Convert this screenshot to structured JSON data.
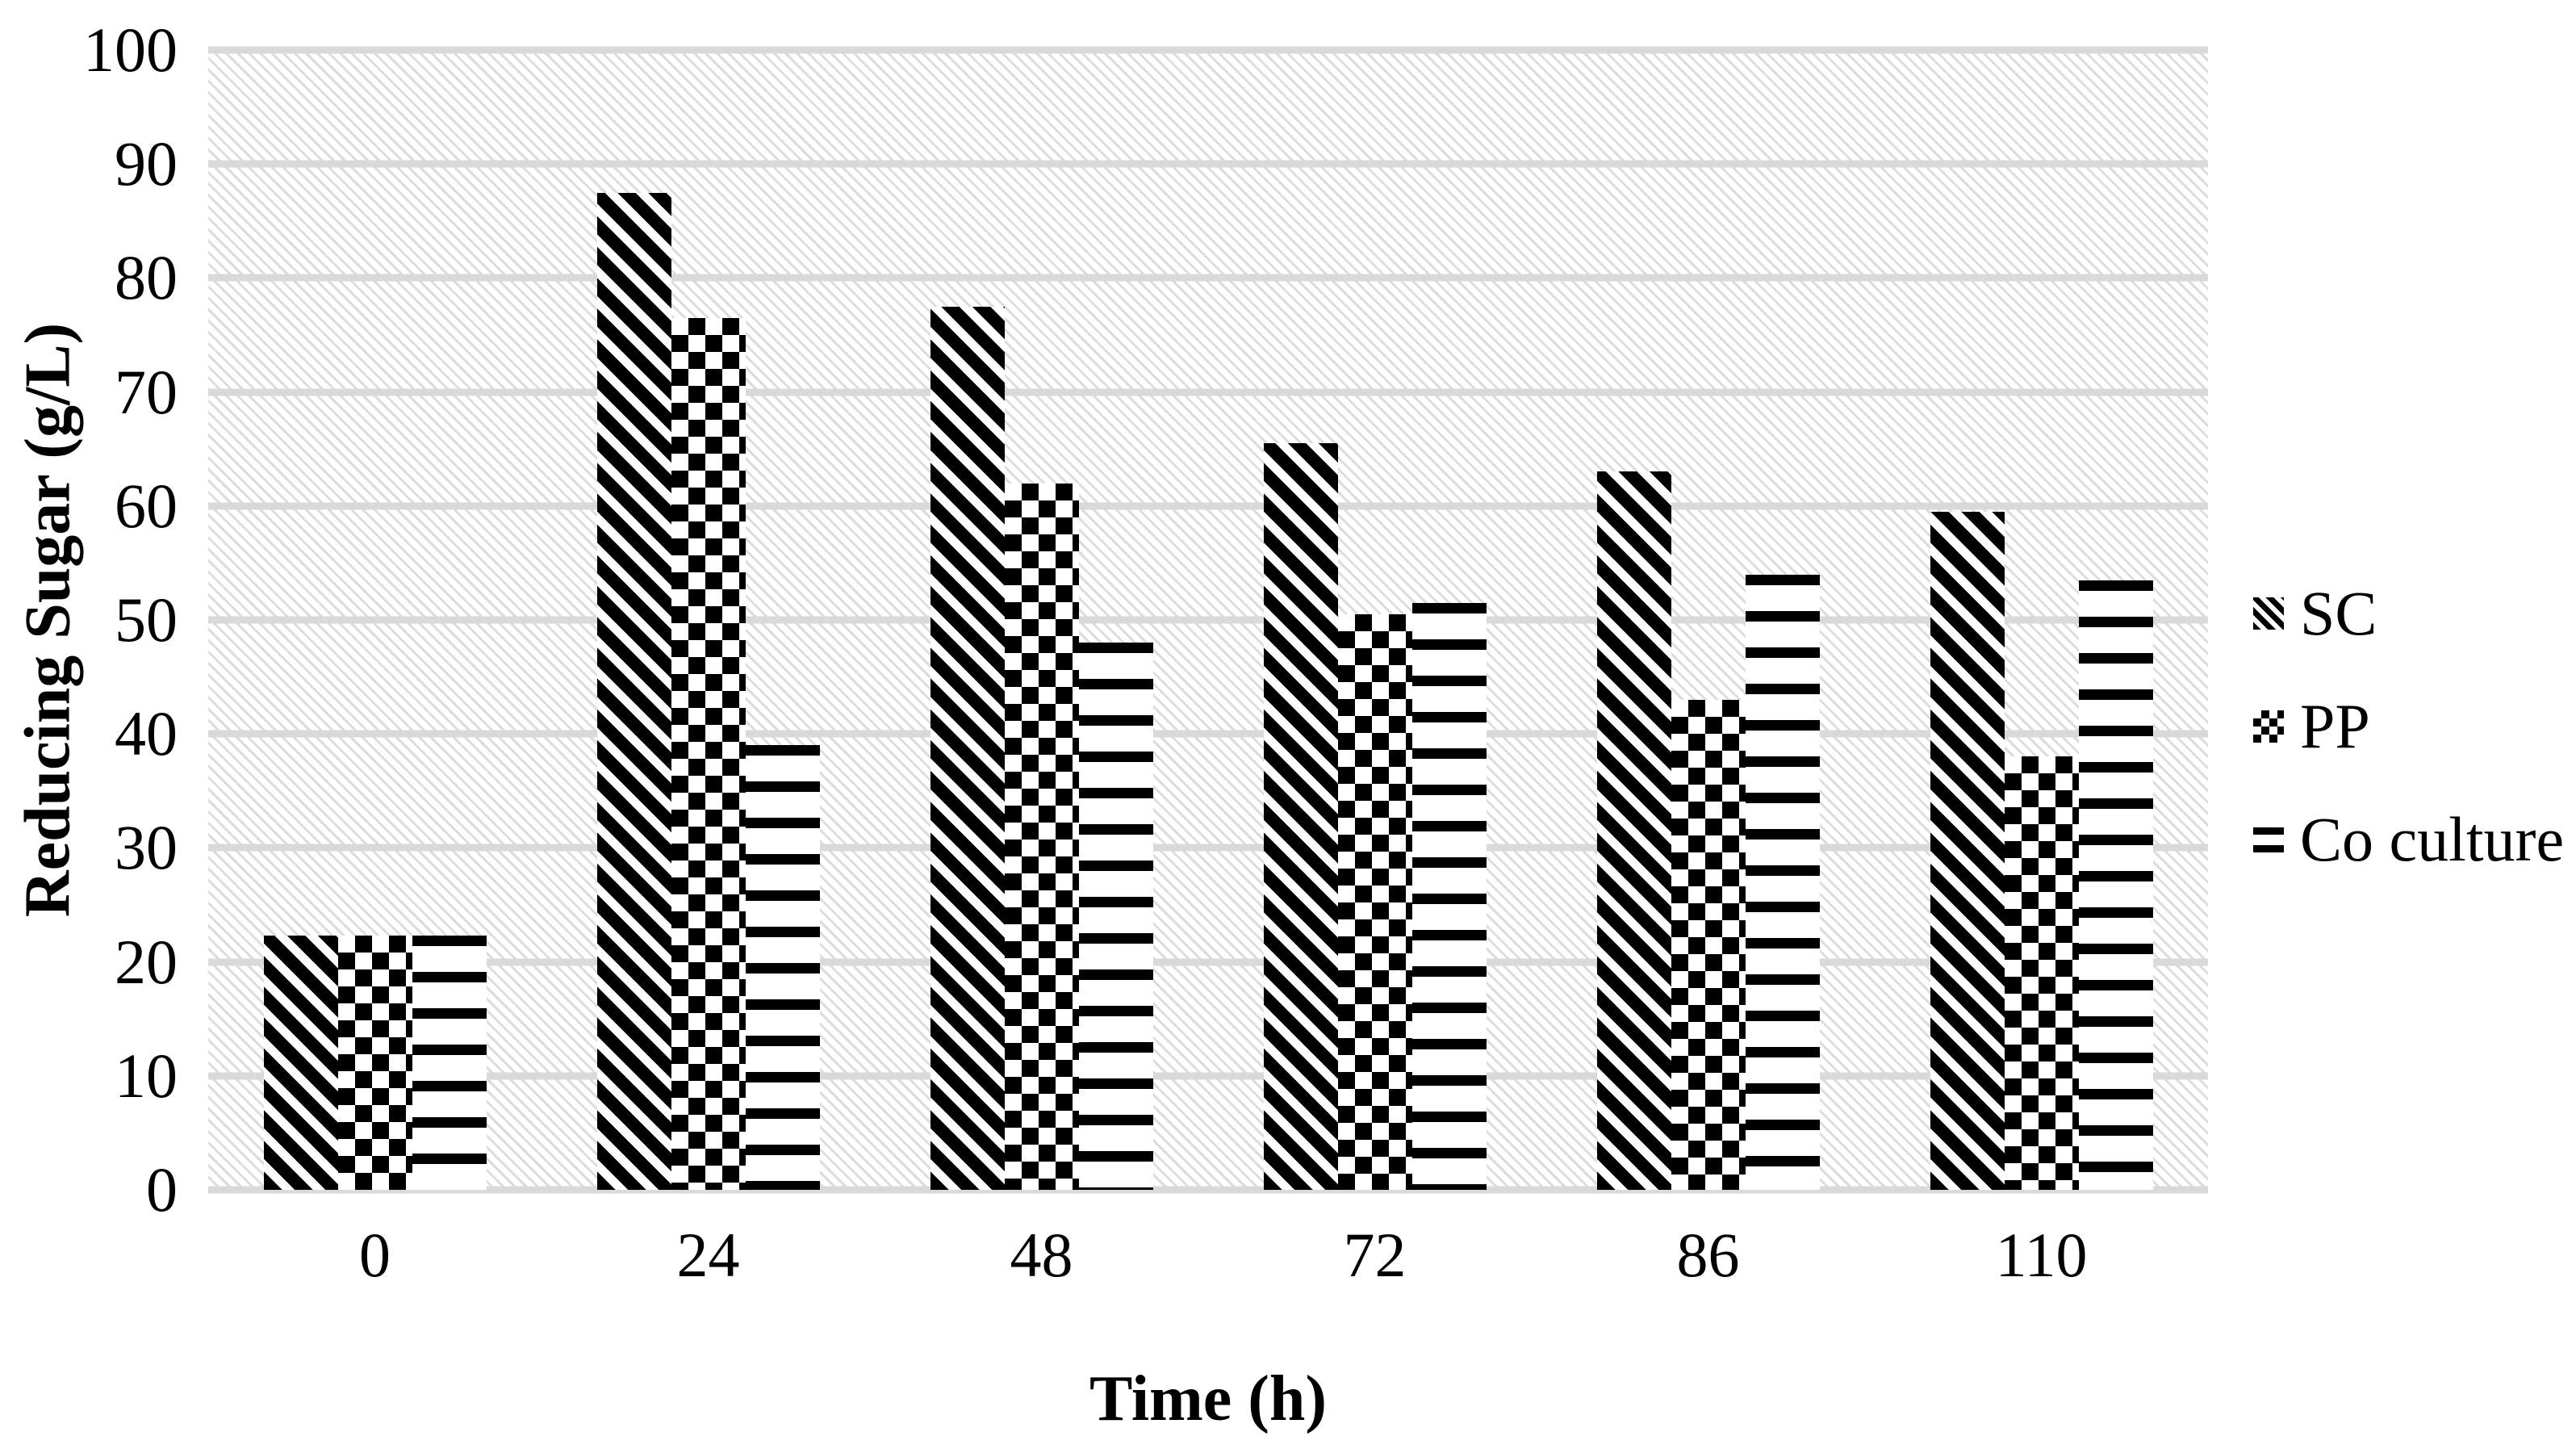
{
  "chart_data": {
    "type": "bar",
    "title": "",
    "xlabel": "Time (h)",
    "ylabel": "Reducing Sugar (g/L)",
    "categories": [
      "0",
      "24",
      "48",
      "72",
      "86",
      "110"
    ],
    "series": [
      {
        "name": "SC",
        "pattern": "diagonal-stripes",
        "values": [
          22.3,
          87.5,
          77.5,
          65.5,
          63.0,
          59.5
        ]
      },
      {
        "name": "PP",
        "pattern": "checkerboard",
        "values": [
          22.3,
          76.5,
          62.0,
          50.5,
          43.0,
          38.0
        ]
      },
      {
        "name": "Co culture",
        "pattern": "horizontal-lines",
        "values": [
          22.3,
          39.0,
          48.0,
          51.5,
          54.0,
          53.5
        ]
      }
    ],
    "ylim": [
      0,
      100
    ],
    "ytick_step": 10,
    "y_ticks": [
      0,
      10,
      20,
      30,
      40,
      50,
      60,
      70,
      80,
      90,
      100
    ],
    "grid": "horizontal",
    "legend_position": "right",
    "plot_background": "light-gray-diagonal-hatch",
    "colors": {
      "foreground": "#000000",
      "background": "#ffffff",
      "gridline": "#d9d9d9",
      "hatch": "#dcdcdc"
    }
  }
}
